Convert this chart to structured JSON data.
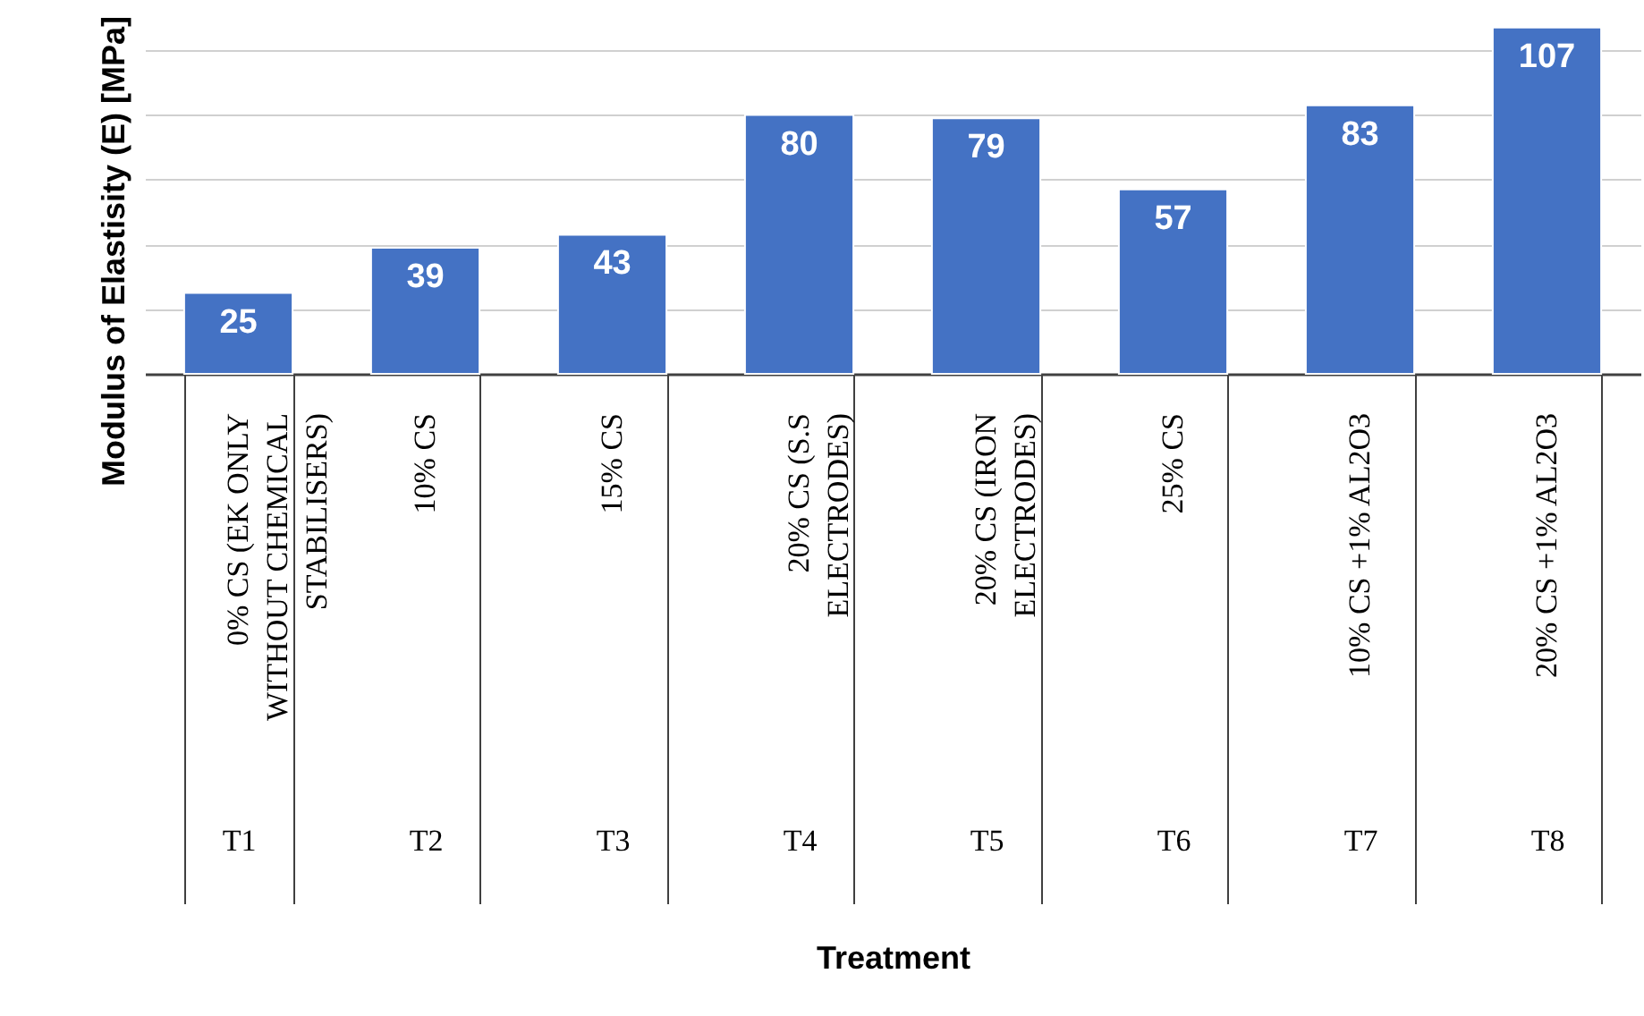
{
  "chart_data": {
    "type": "bar",
    "xlabel": "Treatment",
    "ylabel": "Modulus of Elastisity (E) [MPa]",
    "categories": [
      "T1",
      "T2",
      "T3",
      "T4",
      "T5",
      "T6",
      "T7",
      "T8"
    ],
    "values": [
      25,
      39,
      43,
      80,
      79,
      57,
      83,
      107
    ],
    "color": "#4472c4",
    "data_labels": true,
    "grid": "y",
    "annotations": [
      "0% CS (EK ONLY WITHOUT CHEMICAL STABILISERS)",
      "10% CS",
      "15% CS",
      "20% CS (S.S ELECTRODES)",
      "20% CS (IRON ELECTRODES)",
      "25% CS",
      "10% CS +1% AL2O3",
      "20% CS +1% AL2O3"
    ]
  }
}
